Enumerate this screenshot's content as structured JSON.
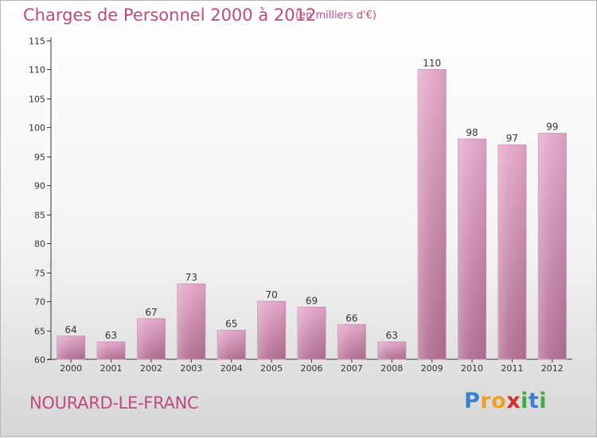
{
  "title": "Charges de Personnel 2000 à 2012",
  "unit": "(en milliers d'€)",
  "city": "NOURARD-LE-FRANC",
  "logo": {
    "letters": [
      "P",
      "r",
      "o",
      "x",
      "i",
      "t",
      "i"
    ],
    "colors": [
      "#3a7fd0",
      "#f0a020",
      "#f0a020",
      "#d03030",
      "#44aa44",
      "#3a7fd0",
      "#44aa44"
    ]
  },
  "colors": {
    "accent": "#c0497f",
    "bar_top": "#e6a8cc",
    "bar_bottom": "#b26f93",
    "axis": "#333333"
  },
  "chart_data": {
    "type": "bar",
    "title": "Charges de Personnel 2000 à 2012",
    "xlabel": "",
    "ylabel": "",
    "ylim": [
      60,
      115
    ],
    "yticks": [
      60,
      65,
      70,
      75,
      80,
      85,
      90,
      95,
      100,
      105,
      110,
      115
    ],
    "categories": [
      "2000",
      "2001",
      "2002",
      "2003",
      "2004",
      "2005",
      "2006",
      "2007",
      "2008",
      "2009",
      "2010",
      "2011",
      "2012"
    ],
    "values": [
      64,
      63,
      67,
      73,
      65,
      70,
      69,
      66,
      63,
      110,
      98,
      97,
      99
    ],
    "grid": false,
    "data_labels": true
  }
}
